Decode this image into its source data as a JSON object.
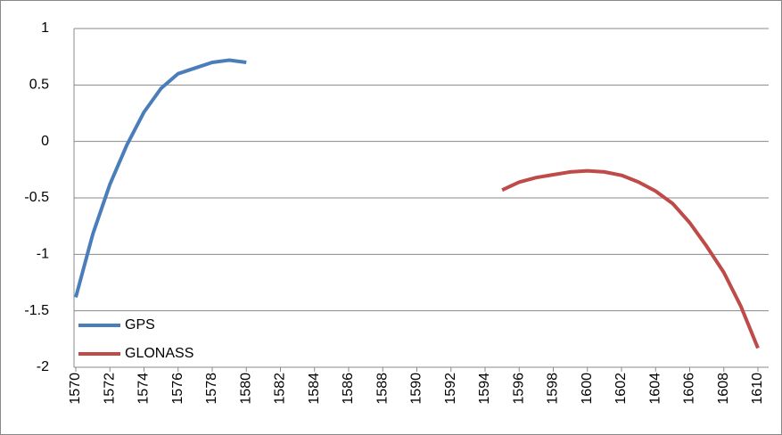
{
  "chart_data": {
    "type": "line",
    "xlim": [
      1570,
      1610
    ],
    "xticks": [
      1570,
      1572,
      1574,
      1576,
      1578,
      1580,
      1582,
      1584,
      1586,
      1588,
      1590,
      1592,
      1594,
      1596,
      1598,
      1600,
      1602,
      1604,
      1606,
      1608,
      1610
    ],
    "ylim": [
      -2,
      1
    ],
    "yticks": [
      -2,
      -1.5,
      -1,
      -0.5,
      0,
      0.5,
      1
    ],
    "grid": true,
    "legend": "lower left",
    "series": [
      {
        "name": "GPS",
        "color": "#4a7ebb",
        "x": [
          1570,
          1571,
          1572,
          1573,
          1574,
          1575,
          1576,
          1577,
          1578,
          1579,
          1580
        ],
        "values": [
          -1.38,
          -0.82,
          -0.38,
          -0.03,
          0.26,
          0.47,
          0.6,
          0.65,
          0.7,
          0.72,
          0.7
        ]
      },
      {
        "name": "GLONASS",
        "color": "#be4b48",
        "x": [
          1595,
          1596,
          1597,
          1598,
          1599,
          1600,
          1601,
          1602,
          1603,
          1604,
          1605,
          1606,
          1607,
          1608,
          1609,
          1610
        ],
        "values": [
          -0.43,
          -0.36,
          -0.32,
          -0.295,
          -0.27,
          -0.26,
          -0.27,
          -0.3,
          -0.36,
          -0.44,
          -0.55,
          -0.72,
          -0.93,
          -1.16,
          -1.46,
          -1.83
        ]
      }
    ]
  }
}
